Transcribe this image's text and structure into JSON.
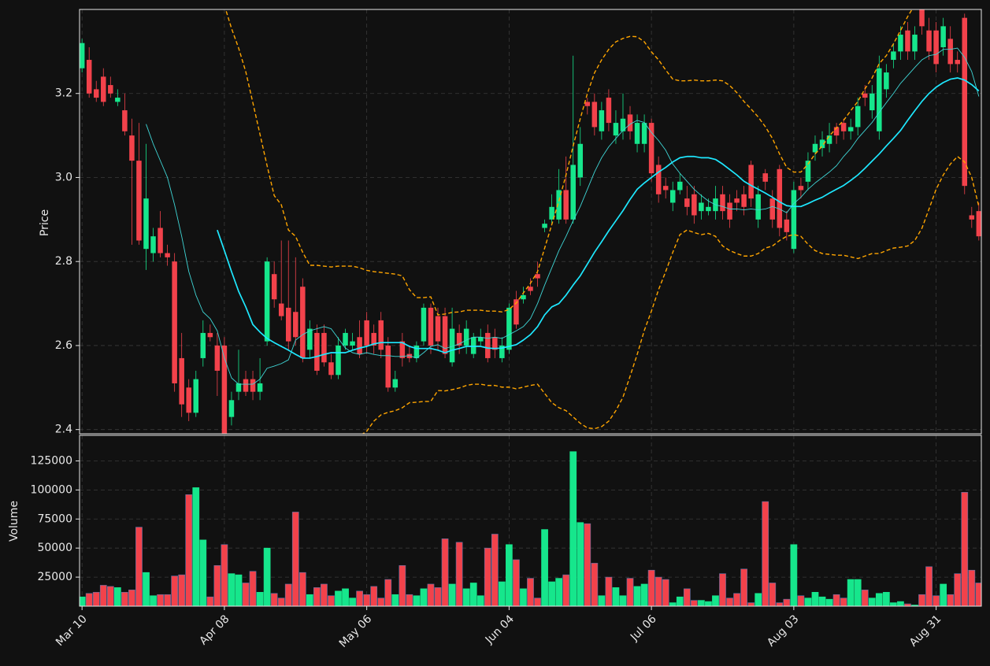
{
  "chart_data": {
    "type": "candlestick",
    "ylabel": "Price",
    "grid": true,
    "up_color": "#16e68c",
    "down_color": "#f2424b",
    "ylim": [
      2.39,
      3.4
    ],
    "yticks": [
      2.4,
      2.6,
      2.8,
      {
        "value": 3.0,
        "label": "3.0"
      },
      3.2
    ],
    "categories": [
      "Mar 10",
      null,
      null,
      null,
      null,
      null,
      null,
      null,
      null,
      null,
      null,
      null,
      null,
      null,
      null,
      null,
      null,
      null,
      null,
      null,
      "Apr 08",
      null,
      null,
      null,
      null,
      null,
      null,
      null,
      null,
      null,
      null,
      null,
      null,
      null,
      null,
      null,
      null,
      null,
      null,
      null,
      "May 06",
      null,
      null,
      null,
      null,
      null,
      null,
      null,
      null,
      null,
      null,
      null,
      null,
      null,
      null,
      null,
      null,
      null,
      null,
      null,
      "Jun 04",
      null,
      null,
      null,
      null,
      null,
      null,
      null,
      null,
      null,
      null,
      null,
      null,
      null,
      null,
      null,
      null,
      null,
      null,
      null,
      "Jul 06",
      null,
      null,
      null,
      null,
      null,
      null,
      null,
      null,
      null,
      null,
      null,
      null,
      null,
      null,
      null,
      null,
      null,
      null,
      null,
      "Aug 03",
      null,
      null,
      null,
      null,
      null,
      null,
      null,
      null,
      null,
      null,
      null,
      null,
      null,
      null,
      null,
      null,
      null,
      null,
      null,
      "Aug 31",
      null,
      null,
      null,
      null,
      null,
      null
    ],
    "open": [
      3.26,
      3.28,
      3.21,
      3.24,
      3.22,
      3.18,
      3.16,
      3.1,
      3.04,
      2.83,
      2.82,
      2.88,
      2.82,
      2.8,
      2.57,
      2.5,
      2.44,
      2.57,
      2.63,
      2.6,
      2.6,
      2.43,
      2.49,
      2.52,
      2.52,
      2.49,
      2.61,
      2.77,
      2.7,
      2.69,
      2.68,
      2.74,
      2.59,
      2.63,
      2.63,
      2.56,
      2.53,
      2.6,
      2.6,
      2.62,
      2.66,
      2.63,
      2.66,
      2.6,
      2.5,
      2.61,
      2.58,
      2.57,
      2.61,
      2.69,
      2.67,
      2.67,
      2.56,
      2.63,
      2.6,
      2.58,
      2.61,
      2.63,
      2.62,
      2.57,
      2.59,
      2.71,
      2.71,
      2.74,
      2.77,
      2.88,
      2.9,
      2.9,
      2.97,
      2.9,
      3.0,
      3.18,
      3.18,
      3.11,
      3.19,
      3.1,
      3.11,
      3.15,
      3.08,
      3.08,
      3.13,
      3.03,
      2.98,
      2.94,
      2.97,
      2.95,
      2.96,
      2.92,
      2.92,
      2.92,
      2.96,
      2.94,
      2.95,
      2.96,
      3.03,
      2.9,
      3.01,
      2.95,
      3.02,
      2.9,
      2.83,
      2.98,
      2.99,
      3.06,
      3.07,
      3.08,
      3.12,
      3.13,
      3.11,
      3.12,
      3.2,
      3.16,
      3.11,
      3.21,
      3.28,
      3.3,
      3.35,
      3.3,
      3.4,
      3.35,
      3.35,
      3.31,
      3.33,
      3.28,
      3.38,
      2.91,
      2.92
    ],
    "high": [
      3.33,
      3.31,
      3.23,
      3.26,
      3.24,
      3.21,
      3.2,
      3.14,
      3.13,
      3.08,
      2.88,
      2.92,
      2.84,
      2.82,
      2.63,
      2.52,
      2.54,
      2.66,
      2.65,
      2.63,
      2.62,
      2.49,
      2.59,
      2.54,
      2.54,
      2.57,
      2.81,
      2.8,
      2.85,
      2.85,
      2.81,
      2.76,
      2.66,
      2.65,
      2.65,
      2.58,
      2.62,
      2.64,
      2.63,
      2.66,
      2.68,
      2.65,
      2.68,
      2.62,
      2.54,
      2.63,
      2.6,
      2.61,
      2.7,
      2.7,
      2.69,
      2.69,
      2.69,
      2.65,
      2.66,
      2.63,
      2.64,
      2.65,
      2.64,
      2.62,
      2.7,
      2.73,
      2.74,
      2.76,
      2.8,
      2.9,
      2.96,
      3.02,
      3.05,
      3.29,
      3.12,
      3.19,
      3.2,
      3.18,
      3.21,
      3.16,
      3.2,
      3.17,
      3.15,
      3.15,
      3.14,
      3.05,
      3.0,
      2.99,
      3.01,
      2.98,
      2.98,
      2.96,
      2.95,
      2.98,
      2.98,
      2.96,
      2.97,
      2.98,
      3.04,
      2.98,
      3.02,
      2.97,
      3.03,
      2.92,
      2.99,
      3.0,
      3.06,
      3.1,
      3.11,
      3.13,
      3.13,
      3.14,
      3.14,
      3.19,
      3.22,
      3.22,
      3.29,
      3.27,
      3.32,
      3.36,
      3.37,
      3.36,
      3.42,
      3.38,
      3.37,
      3.38,
      3.36,
      3.3,
      3.39,
      2.93,
      2.94
    ],
    "low": [
      3.25,
      3.19,
      3.18,
      3.17,
      3.19,
      3.17,
      3.1,
      2.84,
      2.84,
      2.78,
      2.8,
      2.81,
      2.79,
      2.49,
      2.43,
      2.42,
      2.43,
      2.55,
      2.61,
      2.48,
      2.38,
      2.41,
      2.47,
      2.48,
      2.47,
      2.47,
      2.6,
      2.69,
      2.66,
      2.59,
      2.6,
      2.56,
      2.57,
      2.53,
      2.55,
      2.52,
      2.52,
      2.59,
      2.59,
      2.57,
      2.58,
      2.58,
      2.57,
      2.49,
      2.49,
      2.55,
      2.56,
      2.56,
      2.6,
      2.58,
      2.59,
      2.57,
      2.55,
      2.58,
      2.58,
      2.57,
      2.6,
      2.56,
      2.57,
      2.56,
      2.58,
      2.64,
      2.7,
      2.72,
      2.74,
      2.87,
      2.89,
      2.89,
      2.89,
      2.89,
      2.98,
      3.15,
      3.1,
      3.09,
      3.11,
      3.08,
      3.09,
      3.09,
      3.06,
      3.06,
      2.99,
      2.94,
      2.95,
      2.92,
      2.96,
      2.91,
      2.89,
      2.9,
      2.91,
      2.9,
      2.9,
      2.88,
      2.92,
      2.91,
      2.93,
      2.88,
      2.97,
      2.88,
      2.86,
      2.85,
      2.82,
      2.95,
      2.97,
      3.04,
      3.05,
      3.06,
      3.08,
      3.09,
      3.09,
      3.1,
      3.17,
      3.14,
      3.09,
      3.19,
      3.26,
      3.28,
      3.28,
      3.28,
      3.34,
      3.28,
      3.25,
      3.29,
      3.25,
      3.25,
      2.96,
      2.88,
      2.85
    ],
    "close": [
      3.32,
      3.2,
      3.19,
      3.18,
      3.2,
      3.19,
      3.11,
      3.04,
      2.85,
      2.95,
      2.86,
      2.82,
      2.81,
      2.51,
      2.46,
      2.44,
      2.52,
      2.63,
      2.62,
      2.54,
      2.39,
      2.47,
      2.51,
      2.49,
      2.49,
      2.51,
      2.8,
      2.71,
      2.67,
      2.61,
      2.62,
      2.57,
      2.64,
      2.54,
      2.56,
      2.53,
      2.6,
      2.63,
      2.61,
      2.58,
      2.6,
      2.6,
      2.59,
      2.5,
      2.52,
      2.57,
      2.57,
      2.6,
      2.69,
      2.6,
      2.61,
      2.58,
      2.64,
      2.6,
      2.64,
      2.62,
      2.62,
      2.57,
      2.59,
      2.6,
      2.69,
      2.65,
      2.72,
      2.73,
      2.76,
      2.89,
      2.93,
      2.97,
      2.9,
      3.03,
      3.08,
      3.17,
      3.12,
      3.16,
      3.13,
      3.13,
      3.14,
      3.11,
      3.13,
      3.13,
      3.01,
      2.96,
      2.97,
      2.97,
      2.99,
      2.93,
      2.91,
      2.94,
      2.93,
      2.95,
      2.92,
      2.9,
      2.94,
      2.93,
      2.95,
      2.96,
      2.99,
      2.9,
      2.88,
      2.87,
      2.97,
      2.97,
      3.04,
      3.08,
      3.09,
      3.1,
      3.1,
      3.11,
      3.12,
      3.17,
      3.19,
      3.2,
      3.26,
      3.25,
      3.3,
      3.34,
      3.3,
      3.34,
      3.36,
      3.3,
      3.27,
      3.36,
      3.27,
      3.27,
      2.98,
      2.9,
      2.86
    ],
    "overlays": [
      {
        "color": "#3fd6d6",
        "width": 0.9,
        "dashed": false,
        "values": [
          null,
          null,
          null,
          null,
          null,
          null,
          null,
          null,
          null,
          3.127,
          3.08,
          3.04,
          3.0,
          2.935,
          2.86,
          2.776,
          2.72,
          2.68,
          2.664,
          2.635,
          2.57,
          2.523,
          2.508,
          2.508,
          2.508,
          2.52,
          2.546,
          2.551,
          2.557,
          2.566,
          2.613,
          2.626,
          2.635,
          2.64,
          2.645,
          2.64,
          2.617,
          2.594,
          2.583,
          2.579,
          2.583,
          2.579,
          2.576,
          2.576,
          2.574,
          2.574,
          2.576,
          2.57,
          2.583,
          2.598,
          2.602,
          2.593,
          2.598,
          2.604,
          2.613,
          2.62,
          2.62,
          2.617,
          2.62,
          2.617,
          2.626,
          2.635,
          2.645,
          2.664,
          2.7,
          2.744,
          2.785,
          2.826,
          2.86,
          2.897,
          2.931,
          2.972,
          3.013,
          3.047,
          3.073,
          3.093,
          3.112,
          3.127,
          3.136,
          3.131,
          3.107,
          3.088,
          3.065,
          3.032,
          3.01,
          2.991,
          2.972,
          2.957,
          2.944,
          2.935,
          2.931,
          2.925,
          2.925,
          2.923,
          2.925,
          2.923,
          2.925,
          2.931,
          2.925,
          2.916,
          2.938,
          2.953,
          2.972,
          2.987,
          3.0,
          3.013,
          3.028,
          3.05,
          3.069,
          3.093,
          3.112,
          3.131,
          3.155,
          3.178,
          3.2,
          3.224,
          3.243,
          3.262,
          3.28,
          3.29,
          3.293,
          3.305,
          3.305,
          3.308,
          3.286,
          3.252,
          3.193
        ]
      },
      {
        "color": "#1ee8ff",
        "width": 1.7,
        "dashed": false,
        "values": [
          null,
          null,
          null,
          null,
          null,
          null,
          null,
          null,
          null,
          null,
          null,
          null,
          null,
          null,
          null,
          null,
          null,
          null,
          null,
          2.875,
          2.826,
          2.776,
          2.729,
          2.692,
          2.65,
          2.632,
          2.617,
          2.607,
          2.598,
          2.589,
          2.579,
          2.57,
          2.57,
          2.574,
          2.579,
          2.583,
          2.583,
          2.583,
          2.589,
          2.594,
          2.598,
          2.604,
          2.607,
          2.607,
          2.607,
          2.607,
          2.598,
          2.593,
          2.593,
          2.593,
          2.589,
          2.583,
          2.589,
          2.593,
          2.598,
          2.598,
          2.598,
          2.594,
          2.593,
          2.594,
          2.598,
          2.602,
          2.613,
          2.626,
          2.645,
          2.673,
          2.692,
          2.7,
          2.72,
          2.744,
          2.766,
          2.794,
          2.822,
          2.847,
          2.873,
          2.897,
          2.921,
          2.948,
          2.972,
          2.987,
          3.0,
          3.013,
          3.024,
          3.037,
          3.047,
          3.05,
          3.05,
          3.047,
          3.047,
          3.043,
          3.032,
          3.019,
          3.006,
          2.991,
          2.981,
          2.972,
          2.963,
          2.953,
          2.942,
          2.933,
          2.931,
          2.931,
          2.938,
          2.946,
          2.953,
          2.963,
          2.972,
          2.981,
          2.993,
          3.006,
          3.022,
          3.039,
          3.056,
          3.075,
          3.093,
          3.112,
          3.136,
          3.159,
          3.181,
          3.2,
          3.215,
          3.226,
          3.234,
          3.237,
          3.232,
          3.221,
          3.206
        ]
      },
      {
        "color": "#ffa500",
        "width": 1.4,
        "dashed": true,
        "values": [
          null,
          null,
          null,
          null,
          null,
          null,
          null,
          null,
          null,
          null,
          null,
          null,
          null,
          null,
          null,
          null,
          null,
          null,
          null,
          null,
          3.41,
          3.355,
          3.308,
          3.252,
          3.178,
          3.103,
          3.028,
          2.957,
          2.935,
          2.875,
          2.86,
          2.822,
          2.791,
          2.791,
          2.789,
          2.787,
          2.789,
          2.789,
          2.789,
          2.785,
          2.779,
          2.776,
          2.774,
          2.772,
          2.77,
          2.766,
          2.733,
          2.714,
          2.714,
          2.716,
          2.673,
          2.675,
          2.679,
          2.68,
          2.684,
          2.684,
          2.684,
          2.682,
          2.682,
          2.68,
          2.686,
          2.701,
          2.725,
          2.748,
          2.776,
          2.832,
          2.888,
          2.944,
          3.006,
          3.075,
          3.14,
          3.2,
          3.249,
          3.28,
          3.305,
          3.323,
          3.331,
          3.336,
          3.335,
          3.323,
          3.299,
          3.28,
          3.256,
          3.234,
          3.23,
          3.23,
          3.232,
          3.23,
          3.23,
          3.232,
          3.23,
          3.219,
          3.202,
          3.181,
          3.163,
          3.144,
          3.121,
          3.093,
          3.056,
          3.024,
          3.013,
          3.013,
          3.032,
          3.056,
          3.075,
          3.099,
          3.118,
          3.136,
          3.159,
          3.181,
          3.211,
          3.237,
          3.271,
          3.29,
          3.318,
          3.35,
          3.383,
          3.411,
          3.44,
          3.46,
          3.47,
          3.47,
          3.46,
          3.45,
          3.43,
          3.41,
          3.4
        ]
      },
      {
        "color": "#ffa500",
        "width": 1.4,
        "dashed": true,
        "values": [
          null,
          null,
          null,
          null,
          null,
          null,
          null,
          null,
          null,
          null,
          null,
          null,
          null,
          null,
          null,
          null,
          null,
          null,
          null,
          null,
          2.24,
          2.197,
          2.15,
          2.132,
          2.122,
          2.16,
          2.206,
          2.257,
          2.26,
          2.3,
          2.3,
          2.32,
          2.35,
          2.36,
          2.37,
          2.38,
          2.38,
          2.38,
          2.385,
          2.385,
          2.396,
          2.42,
          2.435,
          2.441,
          2.445,
          2.452,
          2.464,
          2.465,
          2.467,
          2.467,
          2.493,
          2.492,
          2.495,
          2.499,
          2.505,
          2.508,
          2.508,
          2.505,
          2.505,
          2.501,
          2.501,
          2.497,
          2.501,
          2.505,
          2.508,
          2.486,
          2.464,
          2.452,
          2.445,
          2.43,
          2.415,
          2.404,
          2.402,
          2.407,
          2.42,
          2.445,
          2.477,
          2.527,
          2.579,
          2.636,
          2.682,
          2.733,
          2.776,
          2.822,
          2.864,
          2.875,
          2.869,
          2.864,
          2.867,
          2.86,
          2.837,
          2.826,
          2.819,
          2.813,
          2.813,
          2.819,
          2.832,
          2.837,
          2.85,
          2.86,
          2.864,
          2.86,
          2.841,
          2.826,
          2.819,
          2.817,
          2.815,
          2.815,
          2.811,
          2.807,
          2.813,
          2.819,
          2.819,
          2.826,
          2.832,
          2.834,
          2.837,
          2.85,
          2.879,
          2.925,
          2.972,
          3.006,
          3.032,
          3.05,
          3.037,
          3.0,
          2.931
        ]
      }
    ],
    "volume": {
      "ylabel": "Volume",
      "ylim": [
        0,
        147000
      ],
      "yticks": [
        25000,
        50000,
        75000,
        100000,
        125000
      ],
      "values": [
        8000,
        11000,
        12000,
        18000,
        17000,
        16000,
        12000,
        14000,
        68000,
        29000,
        9000,
        10000,
        10000,
        26000,
        27000,
        96000,
        102000,
        57000,
        8000,
        35000,
        53000,
        28000,
        27000,
        20000,
        30000,
        12000,
        50000,
        11000,
        7000,
        19000,
        81000,
        29000,
        10000,
        16000,
        19000,
        9000,
        13000,
        15000,
        7000,
        13000,
        10000,
        17000,
        7000,
        23000,
        10000,
        35000,
        10000,
        9000,
        15000,
        19000,
        16000,
        58000,
        19000,
        55000,
        15000,
        20000,
        9000,
        50000,
        62000,
        21000,
        53000,
        40000,
        15000,
        24000,
        7000,
        66000,
        21000,
        24000,
        27000,
        133000,
        72000,
        71000,
        37000,
        9000,
        25000,
        16000,
        9000,
        24000,
        17000,
        19000,
        31000,
        25000,
        23000,
        3000,
        8000,
        15000,
        5000,
        5000,
        4000,
        9000,
        28000,
        7000,
        11000,
        32000,
        3000,
        11000,
        90000,
        20000,
        3000,
        6000,
        53000,
        9000,
        7000,
        12000,
        8000,
        6000,
        10000,
        7000,
        23000,
        23000,
        14000,
        7000,
        11000,
        12000,
        3000,
        4000,
        2000,
        1000,
        10000,
        34000,
        9000,
        19000,
        10000,
        28000,
        98000,
        31000,
        20000
      ]
    }
  }
}
